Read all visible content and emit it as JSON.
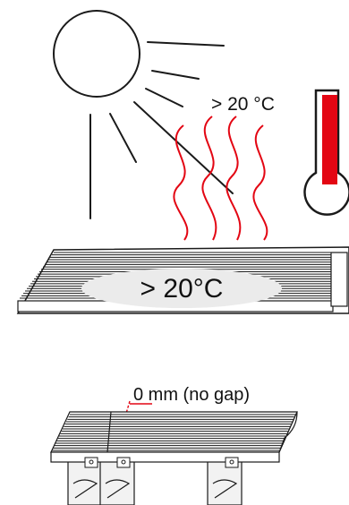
{
  "labels": {
    "temp_top": "> 20 °C",
    "temp_board": "> 20°C",
    "gap": "0 mm (no gap)"
  },
  "colors": {
    "accent_red": "#e30613",
    "line": "#1a1a1a",
    "board_fill": "#ffffff",
    "oval_fill": "#ebebeb",
    "bearer_fill": "#f2f2f2"
  },
  "icons": {
    "sun": "sun-icon",
    "heat": "heat-waves-icon",
    "thermometer": "thermometer-icon"
  }
}
